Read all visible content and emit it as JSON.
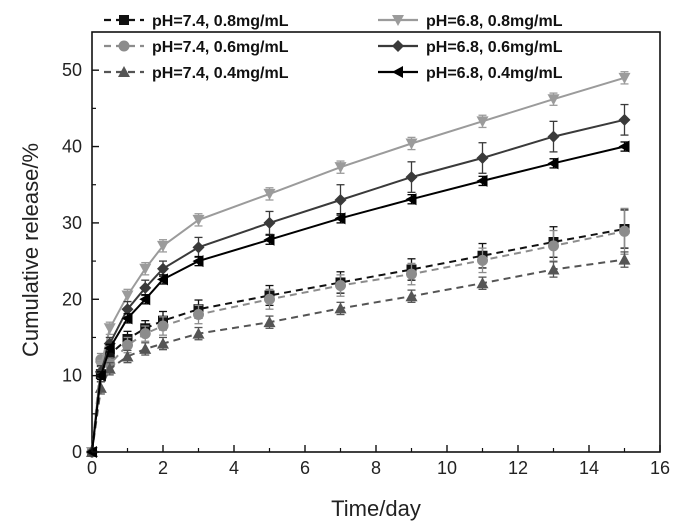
{
  "chart_data": {
    "type": "line",
    "xlabel": "Time/day",
    "ylabel": "Cumulative release/%",
    "xlim": [
      0,
      16
    ],
    "ylim": [
      0,
      55
    ],
    "xticks": [
      0,
      2,
      4,
      6,
      8,
      10,
      12,
      14,
      16
    ],
    "yticks": [
      0,
      10,
      20,
      30,
      40,
      50
    ],
    "grid": false,
    "legend_position": "top-left",
    "x": [
      0,
      0.25,
      0.5,
      1,
      1.5,
      2,
      3,
      5,
      7,
      9,
      11,
      13,
      15
    ],
    "series": [
      {
        "name": "pH=7.4, 0.8mg/mL",
        "color": "#111111",
        "dash": "dashed",
        "marker": "square",
        "values": [
          0,
          10.2,
          12.8,
          14.8,
          16.2,
          17.2,
          18.7,
          20.5,
          22.2,
          23.9,
          25.7,
          27.5,
          29.2
        ],
        "errors": [
          0,
          1.0,
          1.0,
          1.0,
          1.0,
          1.2,
          1.2,
          1.3,
          1.4,
          1.4,
          1.6,
          2.0,
          2.5
        ]
      },
      {
        "name": "pH=7.4, 0.6mg/mL",
        "color": "#8c8c8c",
        "dash": "dashed",
        "marker": "circle",
        "values": [
          0,
          12.1,
          11.5,
          14.0,
          15.5,
          16.5,
          18.0,
          20.0,
          21.8,
          23.3,
          25.1,
          27.0,
          28.9
        ],
        "errors": [
          0,
          0.8,
          0.8,
          1.0,
          1.0,
          1.2,
          1.2,
          1.3,
          1.4,
          1.4,
          1.6,
          2.0,
          3.0
        ]
      },
      {
        "name": "pH=7.4, 0.4mg/mL",
        "color": "#555555",
        "dash": "dashed",
        "marker": "triangle",
        "values": [
          0,
          8.4,
          10.9,
          12.5,
          13.5,
          14.2,
          15.5,
          17.0,
          18.8,
          20.4,
          22.1,
          23.9,
          25.2
        ],
        "errors": [
          0,
          0.8,
          0.8,
          0.8,
          0.8,
          0.8,
          0.8,
          0.8,
          0.8,
          0.8,
          0.8,
          1.0,
          1.0
        ]
      },
      {
        "name": "pH=6.8, 0.8mg/mL",
        "color": "#9b9b9b",
        "dash": "solid",
        "marker": "triangle-down",
        "values": [
          0,
          11.2,
          16.2,
          20.5,
          24.0,
          27.0,
          30.4,
          33.8,
          37.3,
          40.4,
          43.3,
          46.2,
          49.0
        ],
        "errors": [
          0,
          0.8,
          0.8,
          0.8,
          0.8,
          0.8,
          0.8,
          0.8,
          0.8,
          0.8,
          0.8,
          0.8,
          0.8
        ]
      },
      {
        "name": "pH=6.8, 0.6mg/mL",
        "color": "#3a3a3a",
        "dash": "solid",
        "marker": "diamond",
        "values": [
          0,
          10.5,
          14.2,
          18.7,
          21.5,
          24.0,
          26.8,
          30.0,
          33.0,
          36.0,
          38.5,
          41.3,
          43.5
        ],
        "errors": [
          0,
          0.8,
          0.8,
          1.0,
          1.0,
          1.0,
          1.3,
          1.5,
          2.0,
          2.0,
          2.0,
          2.0,
          2.0
        ]
      },
      {
        "name": "pH=6.8, 0.4mg/mL",
        "color": "#000000",
        "dash": "solid",
        "marker": "triangle-left",
        "values": [
          0,
          10.0,
          13.6,
          17.5,
          20.0,
          22.6,
          25.0,
          27.8,
          30.6,
          33.1,
          35.5,
          37.8,
          40.0
        ],
        "errors": [
          0,
          0.5,
          0.5,
          0.6,
          0.6,
          0.6,
          0.6,
          0.6,
          0.6,
          0.6,
          0.6,
          0.6,
          0.6
        ]
      }
    ]
  }
}
